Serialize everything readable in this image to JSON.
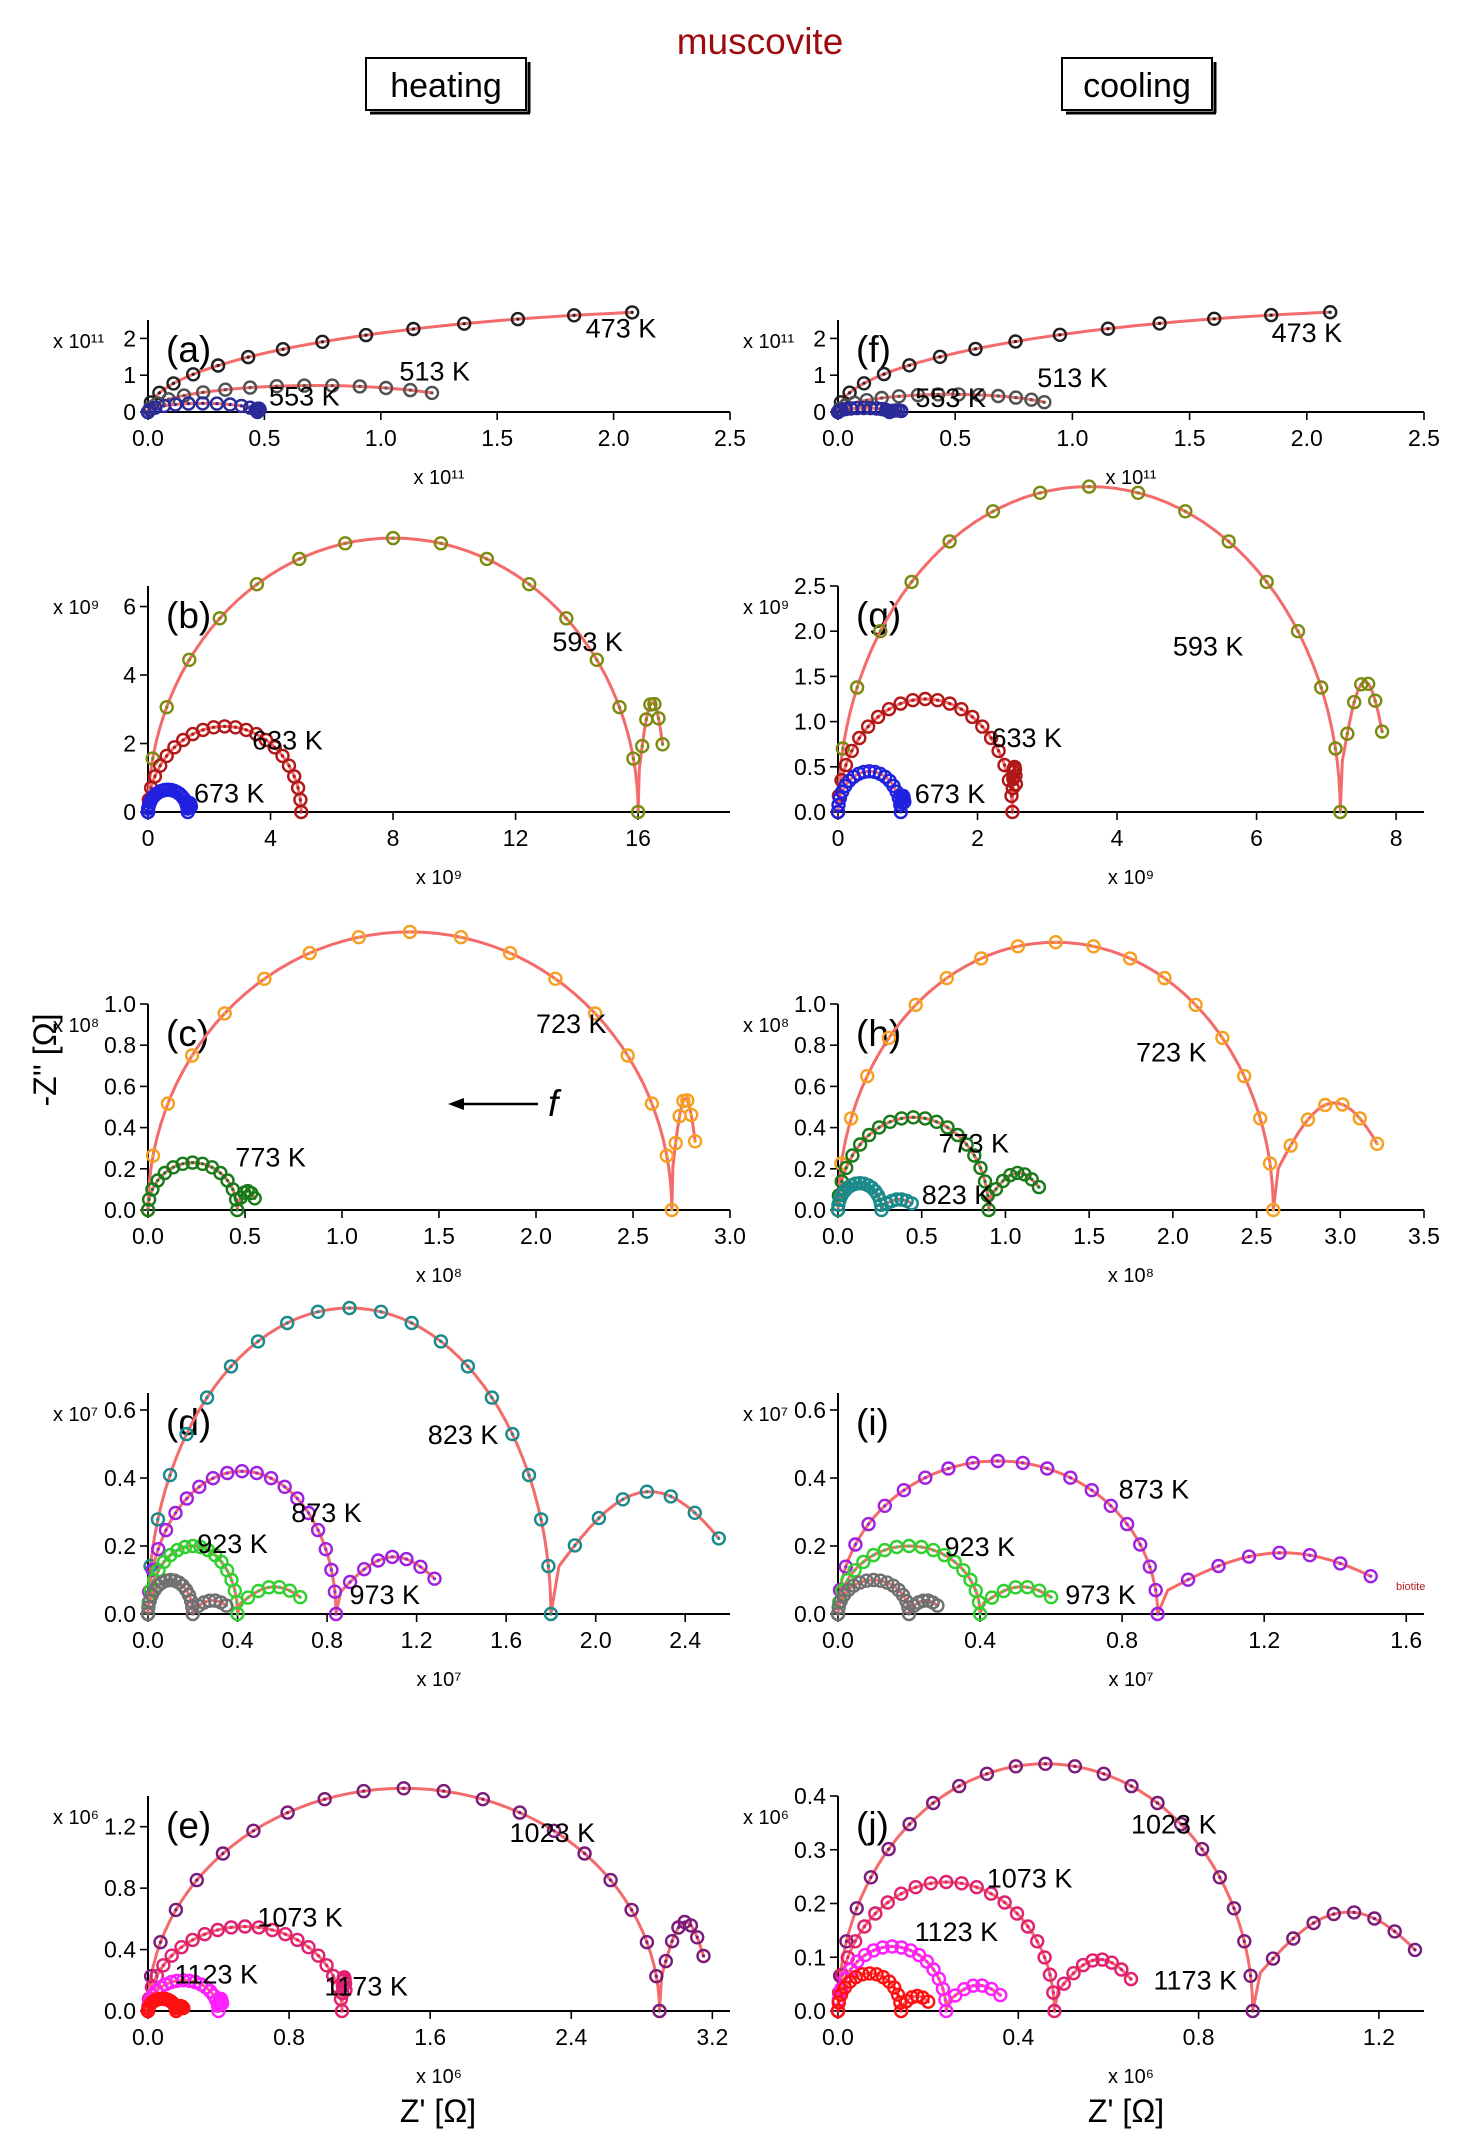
{
  "title": "muscovite",
  "labels": {
    "heating": "heating",
    "cooling": "cooling",
    "ylabel": "-Z'' [Ω]",
    "xlabel": "Z' [Ω]",
    "f": "f",
    "biotite": "biotite"
  },
  "colors": {
    "fit": "#f46b6b",
    "title": "#9e0b0f",
    "K473": "#202020",
    "K513": "#505050",
    "K553": "#2a2a9a",
    "K593": "#7c8a10",
    "K633": "#b01818",
    "K673": "#2020e0",
    "K723": "#f5a020",
    "K773": "#1a7a1a",
    "K823": "#1a8a8a",
    "K873": "#a020e0",
    "K923": "#30d030",
    "K973": "#707070",
    "K1023": "#7a1a7a",
    "K1073": "#e02070",
    "K1123": "#ff20ff",
    "K1173": "#ff1010"
  },
  "chart_data": [
    {
      "id": "a",
      "type": "scatter",
      "panel_label": "(a)",
      "mode": "heating",
      "xlabel": "Z' [Ω]",
      "ylabel": "-Z'' [Ω]",
      "x_multiplier": "x 10¹¹",
      "y_multiplier": "x 10¹¹",
      "xlim": [
        0,
        2.5
      ],
      "ylim": [
        0,
        2.5
      ],
      "xticks": [
        "0.0",
        "0.5",
        "1.0",
        "1.5",
        "2.0",
        "2.5"
      ],
      "yticks": [
        "0",
        "1",
        "2"
      ],
      "series": [
        {
          "name": "473 K",
          "kind": "arc",
          "r": 2.8,
          "end_x": 2.08,
          "color": "K473",
          "n": 14
        },
        {
          "name": "513 K",
          "kind": "arc",
          "r": 0.72,
          "end_x": 1.22,
          "color": "K513",
          "n": 14
        },
        {
          "name": "553 K",
          "kind": "arc",
          "r": 0.235,
          "end_x": 0.48,
          "color": "K553",
          "n": 12
        }
      ],
      "annotations": [
        {
          "text": "473 K",
          "x": 1.88,
          "y": 2.02
        },
        {
          "text": "513 K",
          "x": 1.08,
          "y": 0.85
        },
        {
          "text": "553 K",
          "x": 0.52,
          "y": 0.18
        }
      ]
    },
    {
      "id": "b",
      "type": "scatter",
      "panel_label": "(b)",
      "mode": "heating",
      "xlabel": "Z' [Ω]",
      "ylabel": "-Z'' [Ω]",
      "x_multiplier": "x 10⁹",
      "y_multiplier": "x 10⁹",
      "xlim": [
        0,
        19
      ],
      "ylim": [
        0,
        6.6
      ],
      "xticks": [
        "0",
        "4",
        "8",
        "12",
        "16"
      ],
      "yticks": [
        "0",
        "2",
        "4",
        "6"
      ],
      "series": [
        {
          "name": "593 K",
          "kind": "arc",
          "r": 8.0,
          "end_x": 16.8,
          "color": "K593",
          "n": 16
        },
        {
          "name": "633 K",
          "kind": "arc",
          "r": 2.5,
          "end_x": 5.0,
          "color": "K633",
          "n": 22
        },
        {
          "name": "673 K",
          "kind": "arc",
          "r": 0.65,
          "end_x": 1.4,
          "color": "K673",
          "n": 20
        }
      ],
      "annotations": [
        {
          "text": "593 K",
          "x": 13.2,
          "y": 4.7
        },
        {
          "text": "633 K",
          "x": 3.4,
          "y": 1.82
        },
        {
          "text": "673 K",
          "x": 1.5,
          "y": 0.28
        }
      ]
    },
    {
      "id": "c",
      "type": "scatter",
      "panel_label": "(c)",
      "mode": "heating",
      "xlabel": "Z' [Ω]",
      "ylabel": "-Z'' [Ω]",
      "x_multiplier": "x 10⁸",
      "y_multiplier": "x 10⁸",
      "xlim": [
        0,
        3.0
      ],
      "ylim": [
        0,
        1.0
      ],
      "xticks": [
        "0.0",
        "0.5",
        "1.0",
        "1.5",
        "2.0",
        "2.5",
        "3.0"
      ],
      "yticks": [
        "0.0",
        "0.2",
        "0.4",
        "0.6",
        "0.8",
        "1.0"
      ],
      "series": [
        {
          "name": "723 K",
          "kind": "arc",
          "r": 1.35,
          "end_x": 2.82,
          "color": "K723",
          "n": 16
        },
        {
          "name": "773 K",
          "kind": "arc",
          "r": 0.23,
          "end_x": 0.55,
          "color": "K773",
          "n": 14
        }
      ],
      "annotations": [
        {
          "text": "723 K",
          "x": 2.0,
          "y": 0.86
        },
        {
          "text": "773 K",
          "x": 0.45,
          "y": 0.21
        }
      ]
    },
    {
      "id": "d",
      "type": "scatter",
      "panel_label": "(d)",
      "mode": "heating",
      "xlabel": "Z' [Ω]",
      "ylabel": "-Z'' [Ω]",
      "x_multiplier": "x 10⁷",
      "y_multiplier": "x 10⁷",
      "xlim": [
        0,
        2.6
      ],
      "ylim": [
        0,
        0.65
      ],
      "xticks": [
        "0.0",
        "0.4",
        "0.8",
        "1.2",
        "1.6",
        "2.0",
        "2.4"
      ],
      "yticks": [
        "0.0",
        "0.2",
        "0.4",
        "0.6"
      ],
      "series": [
        {
          "name": "823 K",
          "kind": "arc",
          "r": 0.9,
          "end_x": 2.55,
          "color": "K823",
          "n": 20
        },
        {
          "name": "873 K",
          "kind": "arc",
          "r": 0.42,
          "end_x": 1.28,
          "color": "K873",
          "n": 20
        },
        {
          "name": "923 K",
          "kind": "arc",
          "r": 0.2,
          "end_x": 0.68,
          "color": "K923",
          "n": 18
        },
        {
          "name": "973 K",
          "kind": "arc",
          "r": 0.1,
          "end_x": 0.35,
          "color": "K973",
          "n": 16
        }
      ],
      "annotations": [
        {
          "text": "823 K",
          "x": 1.25,
          "y": 0.5
        },
        {
          "text": "873 K",
          "x": 0.64,
          "y": 0.27
        },
        {
          "text": "923 K",
          "x": 0.22,
          "y": 0.18
        },
        {
          "text": "973 K",
          "x": 0.9,
          "y": 0.03
        }
      ]
    },
    {
      "id": "e",
      "type": "scatter",
      "panel_label": "(e)",
      "mode": "heating",
      "xlabel": "Z' [Ω]",
      "ylabel": "-Z'' [Ω]",
      "x_multiplier": "x 10⁶",
      "y_multiplier": "x 10⁶",
      "xlim": [
        0,
        3.3
      ],
      "ylim": [
        0,
        1.4
      ],
      "xticks": [
        "0.0",
        "0.8",
        "1.6",
        "2.4",
        "3.2"
      ],
      "yticks": [
        "0.0",
        "0.4",
        "0.8",
        "1.2"
      ],
      "series": [
        {
          "name": "1023 K",
          "kind": "arc",
          "r": 1.45,
          "end_x": 3.15,
          "color": "K1023",
          "n": 20
        },
        {
          "name": "1073 K",
          "kind": "arc",
          "r": 0.55,
          "end_x": 1.12,
          "color": "K1073",
          "n": 22
        },
        {
          "name": "1123 K",
          "kind": "arc",
          "r": 0.2,
          "end_x": 0.42,
          "color": "K1123",
          "n": 18
        },
        {
          "name": "1173 K",
          "kind": "arc",
          "r": 0.08,
          "end_x": 0.2,
          "color": "K1173",
          "n": 14
        }
      ],
      "annotations": [
        {
          "text": "1023 K",
          "x": 2.05,
          "y": 1.1
        },
        {
          "text": "1073 K",
          "x": 0.62,
          "y": 0.55
        },
        {
          "text": "1123 K",
          "x": 0.15,
          "y": 0.18
        },
        {
          "text": "1173 K",
          "x": 1.0,
          "y": 0.1
        }
      ]
    },
    {
      "id": "f",
      "type": "scatter",
      "panel_label": "(f)",
      "mode": "cooling",
      "xlabel": "Z' [Ω]",
      "ylabel": "-Z'' [Ω]",
      "x_multiplier": "x 10¹¹",
      "y_multiplier": "x 10¹¹",
      "xlim": [
        0,
        2.5
      ],
      "ylim": [
        0,
        2.5
      ],
      "xticks": [
        "0.0",
        "0.5",
        "1.0",
        "1.5",
        "2.0",
        "2.5"
      ],
      "yticks": [
        "0",
        "1",
        "2"
      ],
      "series": [
        {
          "name": "473 K",
          "kind": "arc",
          "r": 2.8,
          "end_x": 2.1,
          "color": "K473",
          "n": 14
        },
        {
          "name": "513 K",
          "kind": "arc",
          "r": 0.48,
          "end_x": 0.88,
          "color": "K513",
          "n": 14
        },
        {
          "name": "553 K",
          "kind": "arc",
          "r": 0.11,
          "end_x": 0.27,
          "color": "K553",
          "n": 12
        }
      ],
      "annotations": [
        {
          "text": "473 K",
          "x": 1.85,
          "y": 1.9
        },
        {
          "text": "513 K",
          "x": 0.85,
          "y": 0.68
        },
        {
          "text": "553 K",
          "x": 0.33,
          "y": 0.13
        }
      ]
    },
    {
      "id": "g",
      "type": "scatter",
      "panel_label": "(g)",
      "mode": "cooling",
      "xlabel": "Z' [Ω]",
      "ylabel": "-Z'' [Ω]",
      "x_multiplier": "x 10⁹",
      "y_multiplier": "x 10⁹",
      "xlim": [
        0,
        8.4
      ],
      "ylim": [
        0,
        2.5
      ],
      "xticks": [
        "0",
        "2",
        "4",
        "6",
        "8"
      ],
      "yticks": [
        "0.0",
        "0.5",
        "1.0",
        "1.5",
        "2.0",
        "2.5"
      ],
      "series": [
        {
          "name": "593 K",
          "kind": "arc",
          "r": 3.6,
          "end_x": 7.8,
          "color": "K593",
          "n": 16
        },
        {
          "name": "633 K",
          "kind": "arc",
          "r": 1.25,
          "end_x": 2.55,
          "color": "K633",
          "n": 22
        },
        {
          "name": "673 K",
          "kind": "arc",
          "r": 0.45,
          "end_x": 0.95,
          "color": "K673",
          "n": 18
        }
      ],
      "annotations": [
        {
          "text": "593 K",
          "x": 4.8,
          "y": 1.73
        },
        {
          "text": "633 K",
          "x": 2.2,
          "y": 0.72
        },
        {
          "text": "673 K",
          "x": 1.1,
          "y": 0.1
        }
      ]
    },
    {
      "id": "h",
      "type": "scatter",
      "panel_label": "(h)",
      "mode": "cooling",
      "xlabel": "Z' [Ω]",
      "ylabel": "-Z'' [Ω]",
      "x_multiplier": "x 10⁸",
      "y_multiplier": "x 10⁸",
      "xlim": [
        0,
        3.5
      ],
      "ylim": [
        0,
        1.0
      ],
      "xticks": [
        "0.0",
        "0.5",
        "1.0",
        "1.5",
        "2.0",
        "2.5",
        "3.0",
        "3.5"
      ],
      "yticks": [
        "0.0",
        "0.2",
        "0.4",
        "0.6",
        "0.8",
        "1.0"
      ],
      "series": [
        {
          "name": "723 K",
          "kind": "arc",
          "r": 1.3,
          "end_x": 3.22,
          "color": "K723",
          "n": 18
        },
        {
          "name": "773 K",
          "kind": "arc",
          "r": 0.45,
          "end_x": 1.2,
          "color": "K773",
          "n": 20
        },
        {
          "name": "823 K",
          "kind": "arc",
          "r": 0.13,
          "end_x": 0.44,
          "color": "K823",
          "n": 16
        }
      ],
      "annotations": [
        {
          "text": "723 K",
          "x": 1.78,
          "y": 0.72
        },
        {
          "text": "773 K",
          "x": 0.6,
          "y": 0.28
        },
        {
          "text": "823 K",
          "x": 0.5,
          "y": 0.03
        }
      ]
    },
    {
      "id": "i",
      "type": "scatter",
      "panel_label": "(i)",
      "mode": "cooling",
      "xlabel": "Z' [Ω]",
      "ylabel": "-Z'' [Ω]",
      "x_multiplier": "x 10⁷",
      "y_multiplier": "x 10⁷",
      "xlim": [
        0,
        1.65
      ],
      "ylim": [
        0,
        0.65
      ],
      "xticks": [
        "0.0",
        "0.4",
        "0.8",
        "1.2",
        "1.6"
      ],
      "yticks": [
        "0.0",
        "0.2",
        "0.4",
        "0.6"
      ],
      "series": [
        {
          "name": "873 K",
          "kind": "arc",
          "r": 0.45,
          "end_x": 1.5,
          "color": "K873",
          "n": 20
        },
        {
          "name": "923 K",
          "kind": "arc",
          "r": 0.2,
          "end_x": 0.6,
          "color": "K923",
          "n": 18
        },
        {
          "name": "973 K",
          "kind": "arc",
          "r": 0.1,
          "end_x": 0.28,
          "color": "K973",
          "n": 16
        }
      ],
      "annotations": [
        {
          "text": "873 K",
          "x": 0.79,
          "y": 0.34
        },
        {
          "text": "923 K",
          "x": 0.3,
          "y": 0.17
        },
        {
          "text": "973 K",
          "x": 0.64,
          "y": 0.03
        }
      ]
    },
    {
      "id": "j",
      "type": "scatter",
      "panel_label": "(j)",
      "mode": "cooling",
      "xlabel": "Z' [Ω]",
      "ylabel": "-Z'' [Ω]",
      "x_multiplier": "x 10⁶",
      "y_multiplier": "x 10⁶",
      "xlim": [
        0,
        1.3
      ],
      "ylim": [
        0,
        0.4
      ],
      "xticks": [
        "0.0",
        "0.4",
        "0.8",
        "1.2"
      ],
      "yticks": [
        "0.0",
        "0.1",
        "0.2",
        "0.3",
        "0.4"
      ],
      "series": [
        {
          "name": "1023 K",
          "kind": "arc",
          "r": 0.46,
          "end_x": 1.28,
          "color": "K1023",
          "n": 22
        },
        {
          "name": "1073 K",
          "kind": "arc",
          "r": 0.24,
          "end_x": 0.65,
          "color": "K1073",
          "n": 22
        },
        {
          "name": "1123 K",
          "kind": "arc",
          "r": 0.12,
          "end_x": 0.36,
          "color": "K1123",
          "n": 18
        },
        {
          "name": "1173 K",
          "kind": "arc",
          "r": 0.07,
          "end_x": 0.2,
          "color": "K1173",
          "n": 14
        }
      ],
      "annotations": [
        {
          "text": "1023 K",
          "x": 0.65,
          "y": 0.33
        },
        {
          "text": "1073 K",
          "x": 0.33,
          "y": 0.23
        },
        {
          "text": "1123 K",
          "x": 0.17,
          "y": 0.13
        },
        {
          "text": "1173 K",
          "x": 0.7,
          "y": 0.04
        }
      ]
    }
  ]
}
